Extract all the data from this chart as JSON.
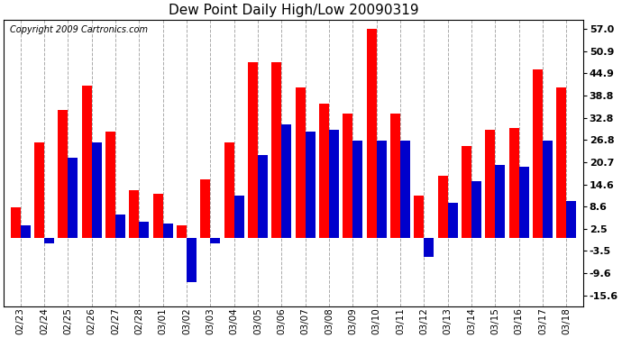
{
  "title": "Dew Point Daily High/Low 20090319",
  "copyright": "Copyright 2009 Cartronics.com",
  "dates": [
    "02/23",
    "02/24",
    "02/25",
    "02/26",
    "02/27",
    "02/28",
    "03/01",
    "03/02",
    "03/03",
    "03/04",
    "03/05",
    "03/06",
    "03/07",
    "03/08",
    "03/09",
    "03/10",
    "03/11",
    "03/12",
    "03/13",
    "03/14",
    "03/15",
    "03/16",
    "03/17",
    "03/18"
  ],
  "highs": [
    8.5,
    26.0,
    35.0,
    41.5,
    29.0,
    13.0,
    12.0,
    3.5,
    16.0,
    26.0,
    48.0,
    48.0,
    41.0,
    36.5,
    34.0,
    57.0,
    34.0,
    11.5,
    17.0,
    25.0,
    29.5,
    30.0,
    46.0,
    41.0
  ],
  "lows": [
    3.5,
    -1.5,
    22.0,
    26.0,
    6.5,
    4.5,
    4.0,
    -12.0,
    -1.5,
    11.5,
    22.5,
    31.0,
    29.0,
    29.5,
    26.5,
    26.5,
    26.5,
    -5.0,
    9.5,
    15.5,
    20.0,
    19.5,
    26.5,
    10.0
  ],
  "high_color": "#ff0000",
  "low_color": "#0000cc",
  "bg_color": "#ffffff",
  "plot_bg_color": "#ffffff",
  "grid_color": "#aaaaaa",
  "yticks": [
    -15.6,
    -9.6,
    -3.5,
    2.5,
    8.6,
    14.6,
    20.7,
    26.8,
    32.8,
    38.8,
    44.9,
    50.9,
    57.0
  ],
  "ymin": -18.5,
  "ymax": 59.5,
  "bar_width": 0.42
}
